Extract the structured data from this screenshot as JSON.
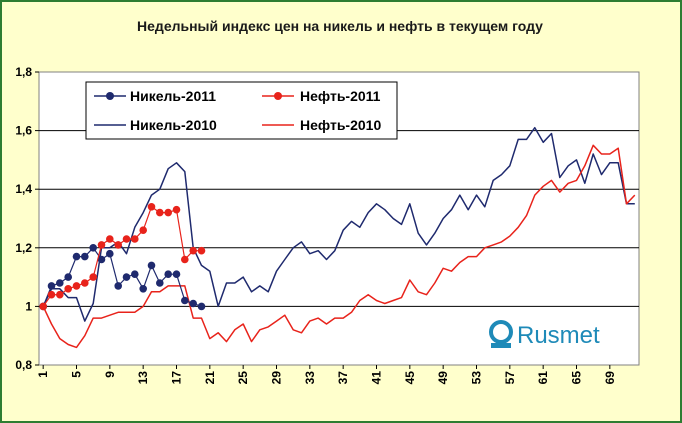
{
  "chart_data": {
    "type": "line",
    "title": "Недельный индекс цен на никель и нефть в текущем году",
    "xlabel": "",
    "ylabel": "",
    "xlim": [
      1,
      72
    ],
    "ylim": [
      0.8,
      1.8
    ],
    "yticks": [
      "0,8",
      "1",
      "1,2",
      "1,4",
      "1,6",
      "1,8"
    ],
    "xticks": [
      "1",
      "5",
      "9",
      "13",
      "17",
      "21",
      "25",
      "29",
      "33",
      "37",
      "41",
      "45",
      "49",
      "53",
      "57",
      "61",
      "65",
      "69"
    ],
    "grid": "horizontal",
    "legend_position": "top-left",
    "series": [
      {
        "name": "Никель-2011",
        "color": "#1f2a6e",
        "style": "line-markers",
        "x": [
          1,
          2,
          3,
          4,
          5,
          6,
          7,
          8,
          9,
          10,
          11,
          12,
          13,
          14,
          15,
          16,
          17,
          18,
          19,
          20,
          21
        ],
        "values": [
          1.0,
          1.07,
          1.08,
          1.1,
          1.17,
          1.17,
          1.2,
          1.16,
          1.18,
          1.07,
          1.1,
          1.11,
          1.06,
          1.14,
          1.08,
          1.11,
          1.11,
          1.02,
          1.01,
          1.0,
          null
        ]
      },
      {
        "name": "Нефть-2011",
        "color": "#e8231b",
        "style": "line-markers",
        "x": [
          1,
          2,
          3,
          4,
          5,
          6,
          7,
          8,
          9,
          10,
          11,
          12,
          13,
          14,
          15,
          16,
          17,
          18,
          19,
          20,
          21
        ],
        "values": [
          1.0,
          1.04,
          1.04,
          1.06,
          1.07,
          1.08,
          1.1,
          1.21,
          1.23,
          1.21,
          1.23,
          1.23,
          1.26,
          1.34,
          1.32,
          1.32,
          1.33,
          1.16,
          1.19,
          1.19,
          null
        ]
      },
      {
        "name": "Никель-2010",
        "color": "#1f2a6e",
        "style": "line",
        "x": [
          1,
          2,
          3,
          4,
          5,
          6,
          7,
          8,
          9,
          10,
          11,
          12,
          13,
          14,
          15,
          16,
          17,
          18,
          19,
          20,
          21,
          22,
          23,
          24,
          25,
          26,
          27,
          28,
          29,
          30,
          31,
          32,
          33,
          34,
          35,
          36,
          37,
          38,
          39,
          40,
          41,
          42,
          43,
          44,
          45,
          46,
          47,
          48,
          49,
          50,
          51,
          52,
          53,
          54,
          55,
          56,
          57,
          58,
          59,
          60,
          61,
          62,
          63,
          64,
          65,
          66,
          67,
          68,
          69,
          70,
          71,
          72
        ],
        "values": [
          1.0,
          1.06,
          1.06,
          1.03,
          1.03,
          0.95,
          1.01,
          1.2,
          1.2,
          1.22,
          1.18,
          1.27,
          1.32,
          1.38,
          1.4,
          1.47,
          1.49,
          1.46,
          1.2,
          1.14,
          1.12,
          1.0,
          1.08,
          1.08,
          1.1,
          1.05,
          1.07,
          1.05,
          1.12,
          1.16,
          1.2,
          1.22,
          1.18,
          1.19,
          1.16,
          1.19,
          1.26,
          1.29,
          1.27,
          1.32,
          1.35,
          1.33,
          1.3,
          1.28,
          1.35,
          1.25,
          1.21,
          1.25,
          1.3,
          1.33,
          1.38,
          1.33,
          1.38,
          1.34,
          1.43,
          1.45,
          1.48,
          1.57,
          1.57,
          1.61,
          1.56,
          1.59,
          1.44,
          1.48,
          1.5,
          1.42,
          1.52,
          1.45,
          1.49,
          1.49,
          1.35,
          1.35
        ]
      },
      {
        "name": "Нефть-2010",
        "color": "#e8231b",
        "style": "line",
        "x": [
          1,
          2,
          3,
          4,
          5,
          6,
          7,
          8,
          9,
          10,
          11,
          12,
          13,
          14,
          15,
          16,
          17,
          18,
          19,
          20,
          21,
          22,
          23,
          24,
          25,
          26,
          27,
          28,
          29,
          30,
          31,
          32,
          33,
          34,
          35,
          36,
          37,
          38,
          39,
          40,
          41,
          42,
          43,
          44,
          45,
          46,
          47,
          48,
          49,
          50,
          51,
          52,
          53,
          54,
          55,
          56,
          57,
          58,
          59,
          60,
          61,
          62,
          63,
          64,
          65,
          66,
          67,
          68,
          69,
          70,
          71,
          72
        ],
        "values": [
          1.0,
          0.94,
          0.89,
          0.87,
          0.86,
          0.9,
          0.96,
          0.96,
          0.97,
          0.98,
          0.98,
          0.98,
          1.0,
          1.05,
          1.05,
          1.07,
          1.07,
          1.07,
          0.96,
          0.96,
          0.89,
          0.91,
          0.88,
          0.92,
          0.94,
          0.88,
          0.92,
          0.93,
          0.95,
          0.97,
          0.92,
          0.91,
          0.95,
          0.96,
          0.94,
          0.96,
          0.96,
          0.98,
          1.02,
          1.04,
          1.02,
          1.01,
          1.02,
          1.03,
          1.09,
          1.05,
          1.04,
          1.08,
          1.13,
          1.12,
          1.15,
          1.17,
          1.17,
          1.2,
          1.21,
          1.22,
          1.24,
          1.27,
          1.31,
          1.38,
          1.41,
          1.43,
          1.39,
          1.42,
          1.43,
          1.48,
          1.55,
          1.52,
          1.52,
          1.54,
          1.35,
          1.38
        ]
      }
    ]
  },
  "logo": {
    "name": "Rusmet",
    "icon": "rusmet-logo-icon",
    "color": "#1e8ab8"
  }
}
